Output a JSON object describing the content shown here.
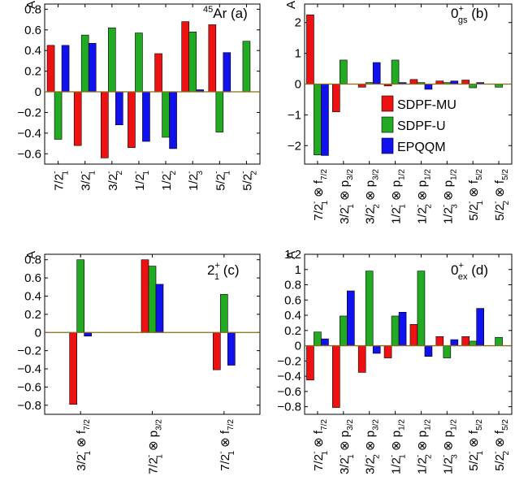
{
  "legend": {
    "entries": [
      {
        "name": "SDPF-MU",
        "color": "#ee1111"
      },
      {
        "name": "SDPF-U",
        "color": "#22aa22"
      },
      {
        "name": "EPQQM",
        "color": "#1111ee"
      }
    ]
  },
  "colors": {
    "zero_line": "#8a6a1a",
    "frame": "#000000"
  },
  "chart_data": [
    {
      "type": "bar",
      "panel": "(a)",
      "tag": {
        "pre": "45",
        "main": "Ar"
      },
      "ylabel": "A",
      "ylim": [
        -0.7,
        0.85
      ],
      "yticks": [
        "0.8",
        "0.6",
        "0.4",
        "0.2",
        "0",
        "−0.2",
        "−0.4",
        "−0.6"
      ],
      "ytick_values": [
        0.8,
        0.6,
        0.4,
        0.2,
        0,
        -0.2,
        -0.4,
        -0.6
      ],
      "categories": [
        {
          "j": "7/2",
          "s": "1"
        },
        {
          "j": "3/2",
          "s": "1"
        },
        {
          "j": "3/2",
          "s": "2"
        },
        {
          "j": "1/2",
          "s": "1"
        },
        {
          "j": "1/2",
          "s": "2"
        },
        {
          "j": "1/2",
          "s": "3"
        },
        {
          "j": "5/2",
          "s": "1"
        },
        {
          "j": "5/2",
          "s": "2"
        }
      ],
      "series": [
        {
          "name": "SDPF-MU",
          "values": [
            0.45,
            -0.52,
            -0.64,
            -0.54,
            0.37,
            0.68,
            0.65,
            null
          ]
        },
        {
          "name": "SDPF-U",
          "values": [
            -0.46,
            0.55,
            0.62,
            0.57,
            -0.44,
            0.58,
            -0.39,
            0.49
          ]
        },
        {
          "name": "EPQQM",
          "values": [
            0.45,
            0.47,
            -0.32,
            -0.48,
            -0.55,
            0.02,
            0.38,
            null
          ]
        }
      ]
    },
    {
      "type": "bar",
      "panel": "(b)",
      "tag": {
        "main": "0",
        "sup": "+",
        "sub": "gs"
      },
      "ylabel": "A",
      "ylim": [
        -2.6,
        2.6
      ],
      "yticks": [
        "2",
        "1",
        "0",
        "−1",
        "−2"
      ],
      "ytick_values": [
        2,
        1,
        0,
        -1,
        -2
      ],
      "categories": [
        {
          "j": "7/2",
          "s": "1",
          "orb": "f",
          "orbsub": "7/2"
        },
        {
          "j": "3/2",
          "s": "1",
          "orb": "p",
          "orbsub": "3/2"
        },
        {
          "j": "3/2",
          "s": "2",
          "orb": "p",
          "orbsub": "3/2"
        },
        {
          "j": "1/2",
          "s": "1",
          "orb": "p",
          "orbsub": "1/2"
        },
        {
          "j": "1/2",
          "s": "2",
          "orb": "p",
          "orbsub": "1/2"
        },
        {
          "j": "1/2",
          "s": "3",
          "orb": "p",
          "orbsub": "1/2"
        },
        {
          "j": "5/2",
          "s": "1",
          "orb": "f",
          "orbsub": "5/2"
        },
        {
          "j": "5/2",
          "s": "2",
          "orb": "f",
          "orbsub": "5/2"
        }
      ],
      "series": [
        {
          "name": "SDPF-MU",
          "values": [
            2.25,
            -0.9,
            -0.1,
            -0.06,
            0.15,
            0.1,
            0.13,
            null
          ]
        },
        {
          "name": "SDPF-U",
          "values": [
            -2.3,
            0.78,
            0.05,
            0.78,
            0.05,
            0.05,
            -0.12,
            -0.1
          ]
        },
        {
          "name": "EPQQM",
          "values": [
            -2.32,
            null,
            0.7,
            0.05,
            -0.17,
            0.1,
            0.05,
            null
          ]
        }
      ]
    },
    {
      "type": "bar",
      "panel": "(c)",
      "tag": {
        "main": "2",
        "sup": "+",
        "sub": "1"
      },
      "ylabel": "A",
      "ylim": [
        -0.9,
        0.86
      ],
      "yticks": [
        "0.8",
        "0.6",
        "0.4",
        "0.2",
        "0",
        "−0.2",
        "−0.4",
        "−0.6",
        "−0.8"
      ],
      "ytick_values": [
        0.8,
        0.6,
        0.4,
        0.2,
        0,
        -0.2,
        -0.4,
        -0.6,
        -0.8
      ],
      "categories": [
        {
          "j": "3/2",
          "s": "1",
          "orb": "f",
          "orbsub": "7/2"
        },
        {
          "j": "7/2",
          "s": "1",
          "orb": "p",
          "orbsub": "3/2"
        },
        {
          "j": "7/2",
          "s": "1",
          "orb": "f",
          "orbsub": "7/2"
        }
      ],
      "series": [
        {
          "name": "SDPF-MU",
          "values": [
            -0.79,
            0.8,
            -0.41
          ]
        },
        {
          "name": "SDPF-U",
          "values": [
            0.8,
            0.73,
            0.42
          ]
        },
        {
          "name": "EPQQM",
          "values": [
            -0.04,
            0.53,
            -0.36
          ]
        }
      ]
    },
    {
      "type": "bar",
      "panel": "(d)",
      "tag": {
        "main": "0",
        "sup": "+",
        "sub": "ex"
      },
      "ylabel": "A",
      "ylim": [
        -0.9,
        1.2
      ],
      "yticks": [
        "1.2",
        "1",
        "0.8",
        "0.6",
        "0.4",
        "0.2",
        "0",
        "−0.2",
        "−0.4",
        "−0.6",
        "−0.8"
      ],
      "ytick_values": [
        1.2,
        1.0,
        0.8,
        0.6,
        0.4,
        0.2,
        0,
        -0.2,
        -0.4,
        -0.6,
        -0.8
      ],
      "categories": [
        {
          "j": "7/2",
          "s": "1",
          "orb": "f",
          "orbsub": "7/2"
        },
        {
          "j": "3/2",
          "s": "1",
          "orb": "p",
          "orbsub": "3/2"
        },
        {
          "j": "3/2",
          "s": "2",
          "orb": "p",
          "orbsub": "3/2"
        },
        {
          "j": "1/2",
          "s": "1",
          "orb": "p",
          "orbsub": "1/2"
        },
        {
          "j": "1/2",
          "s": "2",
          "orb": "p",
          "orbsub": "1/2"
        },
        {
          "j": "1/2",
          "s": "3",
          "orb": "p",
          "orbsub": "1/2"
        },
        {
          "j": "5/2",
          "s": "1",
          "orb": "f",
          "orbsub": "5/2"
        },
        {
          "j": "5/2",
          "s": "2",
          "orb": "f",
          "orbsub": "5/2"
        }
      ],
      "series": [
        {
          "name": "SDPF-MU",
          "values": [
            -0.45,
            -0.81,
            -0.35,
            -0.16,
            0.28,
            0.12,
            0.12,
            null
          ]
        },
        {
          "name": "SDPF-U",
          "values": [
            0.18,
            0.39,
            0.98,
            0.39,
            0.98,
            -0.16,
            0.06,
            0.11
          ]
        },
        {
          "name": "EPQQM",
          "values": [
            0.09,
            0.72,
            -0.1,
            0.44,
            -0.14,
            0.08,
            0.49,
            null
          ]
        }
      ]
    }
  ]
}
